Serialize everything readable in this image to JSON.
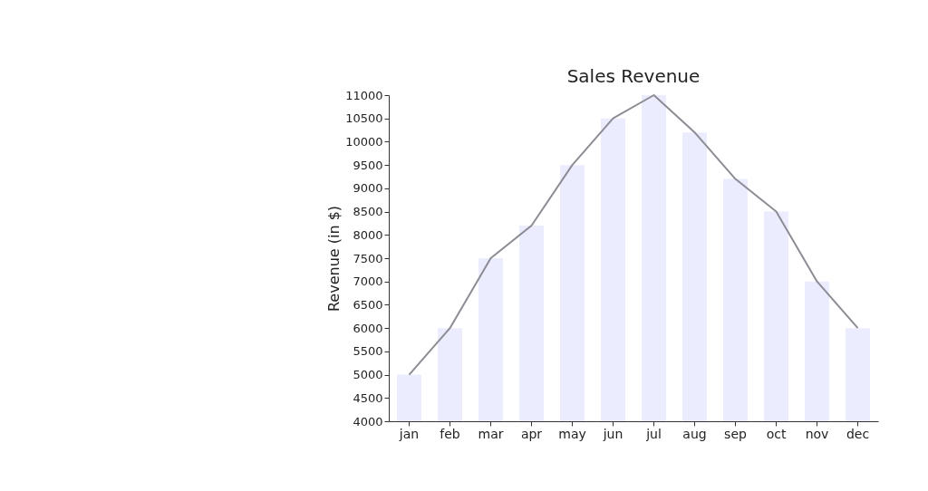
{
  "chart_data": {
    "type": "bar",
    "title": "Sales Revenue",
    "ylabel": "Revenue (in $)",
    "categories": [
      "jan",
      "feb",
      "mar",
      "apr",
      "may",
      "jun",
      "jul",
      "aug",
      "sep",
      "oct",
      "nov",
      "dec"
    ],
    "series": [
      {
        "color": "#ececff",
        "values": [
          5000,
          6000,
          7500,
          8200,
          9500,
          10500,
          11000,
          10200,
          9200,
          8500,
          7000,
          6000
        ]
      },
      {
        "type": "line",
        "color": "#8c8c94",
        "values": [
          5000,
          6000,
          7500,
          8200,
          9500,
          10500,
          11000,
          10200,
          9200,
          8500,
          7000,
          6000
        ]
      }
    ],
    "ylim": [
      4000,
      11000
    ],
    "yticks": [
      4000,
      4500,
      5000,
      5500,
      6000,
      6500,
      7000,
      7500,
      8000,
      8500,
      9000,
      9500,
      10000,
      10500,
      11000
    ]
  }
}
